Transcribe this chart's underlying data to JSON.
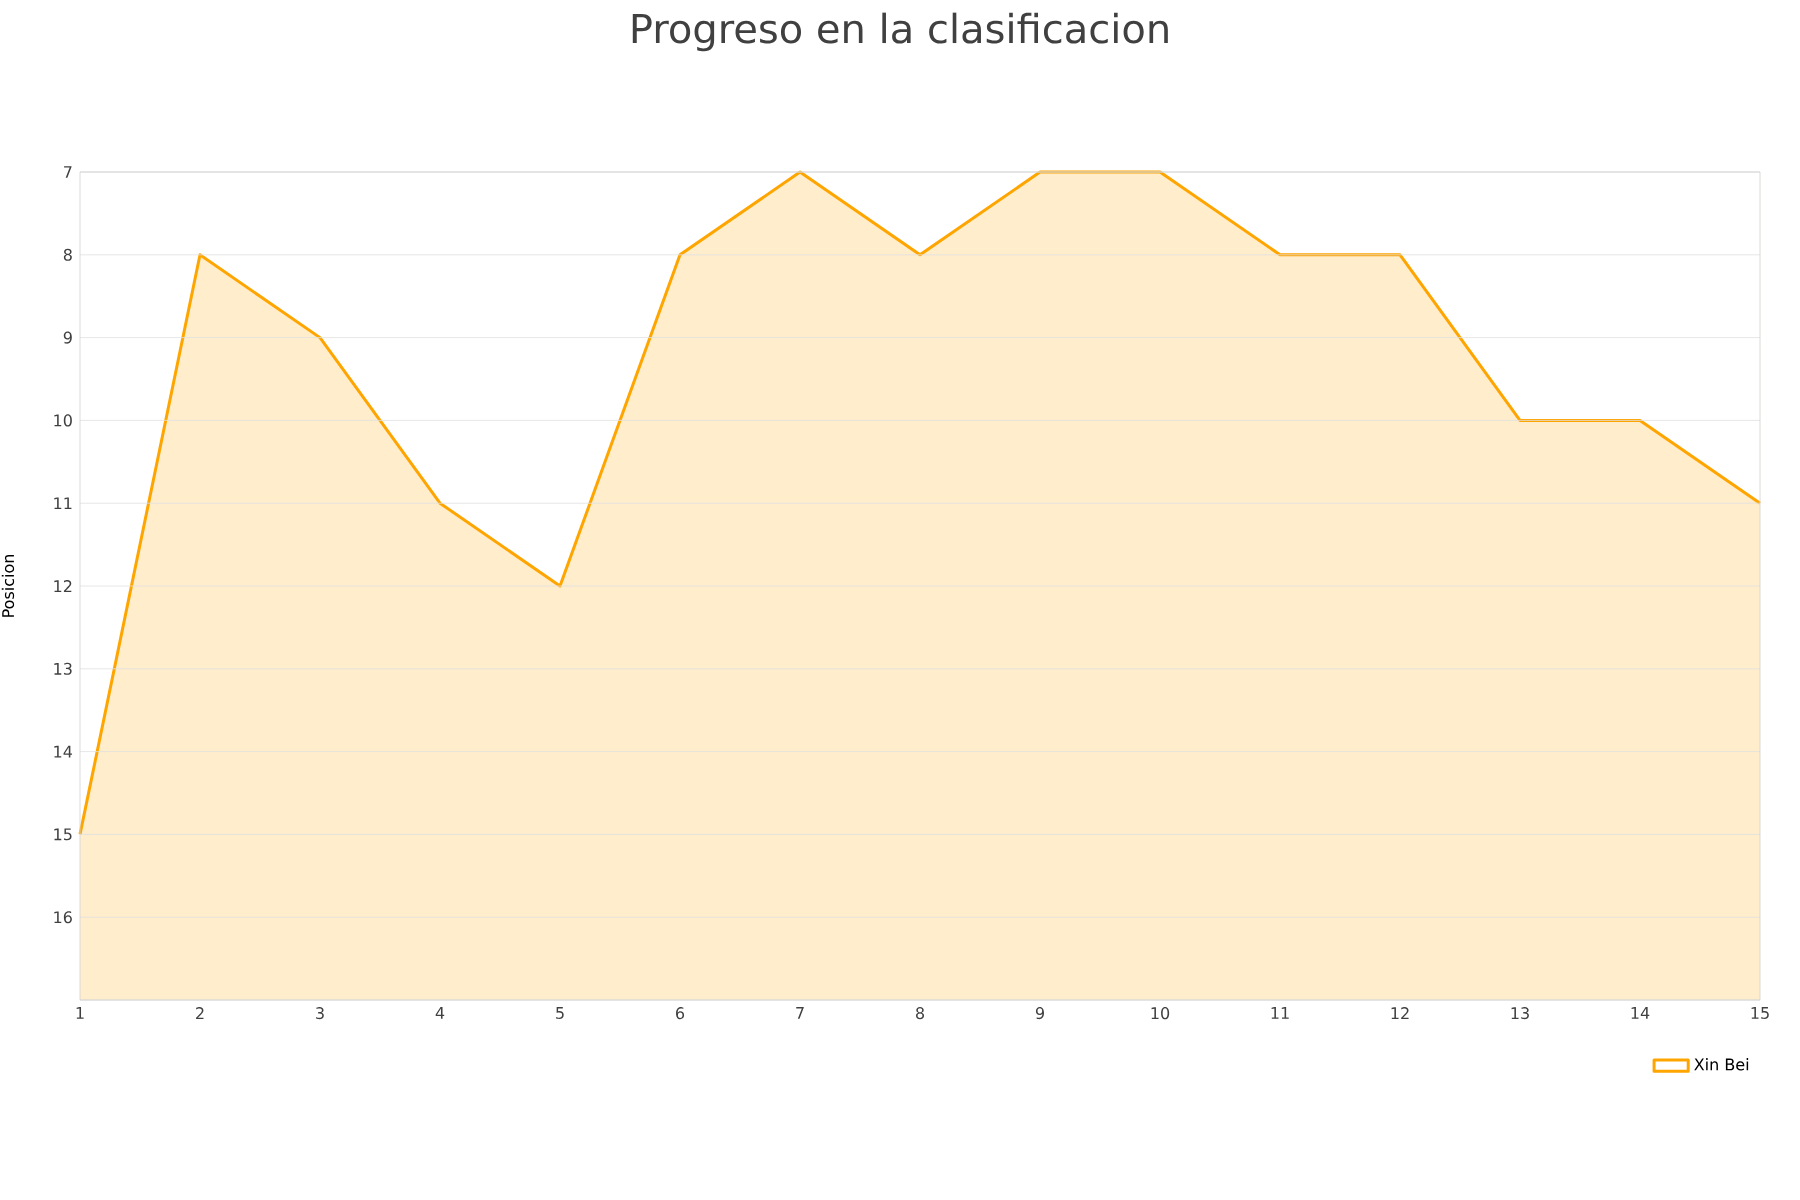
{
  "chart_data": {
    "type": "area",
    "title": "Progreso en la clasificacion",
    "ylabel": "Posicion",
    "x": [
      1,
      2,
      3,
      4,
      5,
      6,
      7,
      8,
      9,
      10,
      11,
      12,
      13,
      14,
      15
    ],
    "series": [
      {
        "name": "Xin Bei",
        "color": "#ffa500",
        "values": [
          15,
          8,
          9,
          11,
          12,
          8,
          7,
          8,
          7,
          7,
          8,
          8,
          10,
          10,
          11
        ]
      }
    ],
    "xlim": [
      1,
      15
    ],
    "xticks": [
      1,
      2,
      3,
      4,
      5,
      6,
      7,
      8,
      9,
      10,
      11,
      12,
      13,
      14,
      15
    ],
    "ylim": [
      17,
      7
    ],
    "yticks": [
      7,
      8,
      9,
      10,
      11,
      12,
      13,
      14,
      15,
      16,
      {
        "value": 17,
        "label": null
      }
    ],
    "grid": "y",
    "legend": "bottom right",
    "marker": "none",
    "line_style": "solid"
  }
}
